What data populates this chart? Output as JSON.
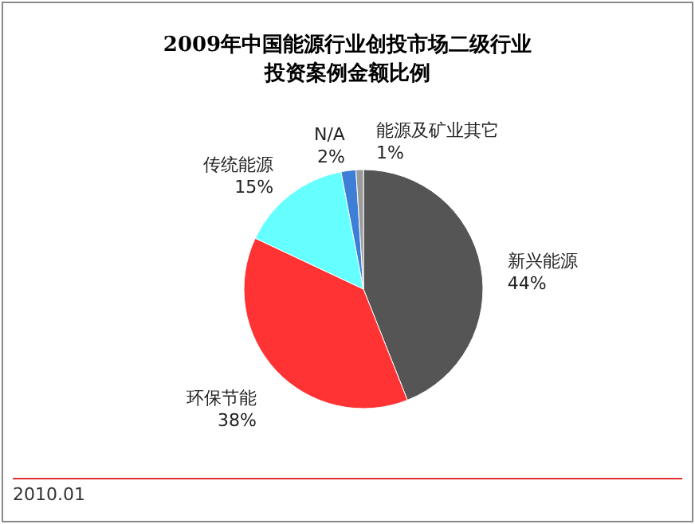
{
  "chart_data": {
    "type": "pie",
    "title": "2009年中国能源行业创投市场二级行业投资案例金额比例",
    "categories": [
      "新兴能源",
      "环保节能",
      "传统能源",
      "N/A",
      "能源及矿业其它"
    ],
    "values": [
      44,
      38,
      15,
      2,
      1
    ],
    "colors": [
      "#555555",
      "#ff3333",
      "#66ffff",
      "#3d7fd6",
      "#9a9a9a"
    ],
    "value_labels": [
      "44%",
      "38%",
      "15%",
      "2%",
      "1%"
    ],
    "annotations": [
      "2010.01"
    ]
  }
}
